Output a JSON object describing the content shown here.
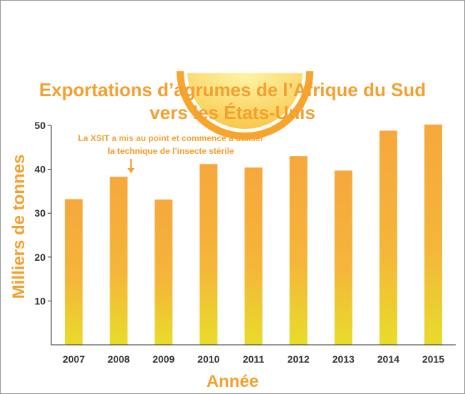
{
  "chart_data": {
    "type": "bar",
    "title": "Exportations d’agrumes de l’Afrique du Sud",
    "subtitle": "vers les États-Unis",
    "xlabel": "Année",
    "ylabel": "Milliers de tonnes",
    "categories": [
      "2007",
      "2008",
      "2009",
      "2010",
      "2011",
      "2012",
      "2013",
      "2014",
      "2015"
    ],
    "values": [
      33.2,
      38.3,
      33.1,
      41.2,
      40.4,
      43.0,
      39.7,
      48.8,
      50.2
    ],
    "ylim": [
      0,
      50
    ],
    "yticks": [
      10,
      20,
      30,
      40,
      50
    ],
    "grid": false,
    "legend": "none",
    "annotation": {
      "category": "2008",
      "lines": [
        "La XSIT a mis au point et commencé à utiliser",
        "la technique de l’insecte stérile"
      ]
    },
    "colors": {
      "accent": "#f4a030",
      "bar_top": "#f6a83c",
      "bar_bottom": "#e8dc2a",
      "orange_slice": "#f7a52d",
      "orange_light": "#fbe87a"
    }
  },
  "icons": {
    "decoration": "orange-slice-icon"
  }
}
